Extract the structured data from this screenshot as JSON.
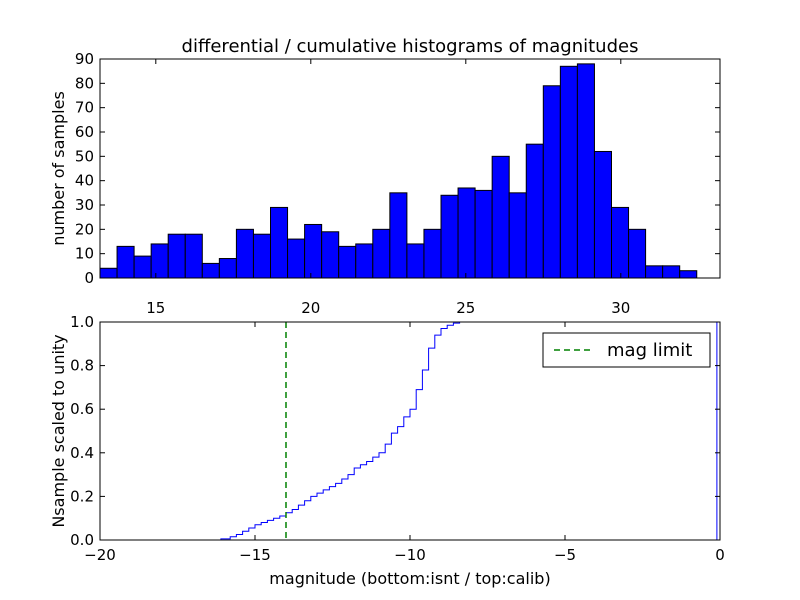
{
  "chart_data": [
    {
      "type": "bar",
      "title": "differential / cumulative histograms of magnitudes",
      "xlabel": "",
      "ylabel": "number of samples",
      "xlim": [
        13.2,
        33.2
      ],
      "ylim": [
        0,
        90
      ],
      "xticks": [
        "15",
        "20",
        "25",
        "30"
      ],
      "yticks": [
        "0",
        "10",
        "20",
        "30",
        "40",
        "50",
        "60",
        "70",
        "80",
        "90"
      ],
      "bin_start": 13.2,
      "bin_width": 0.55,
      "values": [
        4,
        13,
        9,
        14,
        18,
        18,
        6,
        8,
        20,
        18,
        29,
        16,
        22,
        19,
        13,
        14,
        20,
        35,
        14,
        20,
        34,
        37,
        36,
        50,
        35,
        55,
        79,
        87,
        88,
        52,
        29,
        20,
        5,
        5,
        3
      ],
      "bar_color": "#0000ff"
    },
    {
      "type": "line",
      "title": "",
      "xlabel": "magnitude (bottom:isnt / top:calib)",
      "ylabel": "Nsample scaled to unity",
      "xlim": [
        -20,
        0
      ],
      "ylim": [
        0,
        1
      ],
      "xticks": [
        "−20",
        "−15",
        "−10",
        "−5",
        "0"
      ],
      "yticks": [
        "0.0",
        "0.2",
        "0.4",
        "0.6",
        "0.8",
        "1.0"
      ],
      "series": [
        {
          "name": "cumulative",
          "style": "step",
          "color": "#0000ff",
          "x": [
            -20,
            -16.1,
            -15.8,
            -15.6,
            -15.4,
            -15.2,
            -15.0,
            -14.8,
            -14.6,
            -14.4,
            -14.2,
            -14.0,
            -13.8,
            -13.6,
            -13.4,
            -13.2,
            -13.0,
            -12.8,
            -12.6,
            -12.4,
            -12.2,
            -12.0,
            -11.8,
            -11.6,
            -11.4,
            -11.2,
            -11.0,
            -10.8,
            -10.6,
            -10.4,
            -10.2,
            -10.0,
            -9.8,
            -9.6,
            -9.4,
            -9.2,
            -9.0,
            -8.8,
            -8.6,
            -8.4,
            -8.2,
            -8.0,
            -7.8,
            -7.6,
            -0.1
          ],
          "y": [
            0,
            0.005,
            0.015,
            0.025,
            0.04,
            0.055,
            0.07,
            0.08,
            0.09,
            0.1,
            0.11,
            0.125,
            0.14,
            0.16,
            0.18,
            0.2,
            0.215,
            0.23,
            0.245,
            0.26,
            0.28,
            0.3,
            0.33,
            0.345,
            0.36,
            0.38,
            0.4,
            0.44,
            0.49,
            0.52,
            0.565,
            0.6,
            0.69,
            0.78,
            0.88,
            0.94,
            0.97,
            0.985,
            0.995,
            1.0,
            1.0,
            1.0,
            1.0,
            1.0,
            1.0
          ]
        },
        {
          "name": "mag limit",
          "style": "dashed-vline",
          "color": "#008000",
          "x": -14.0
        }
      ],
      "legend": {
        "entries": [
          "mag limit"
        ],
        "position": "top-right"
      }
    }
  ]
}
